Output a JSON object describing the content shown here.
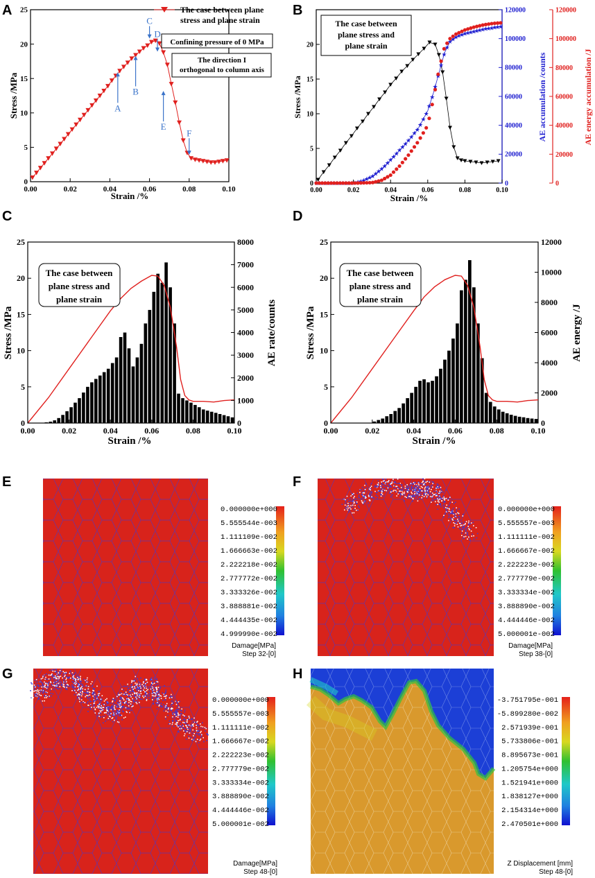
{
  "colors": {
    "stress": "#e0201e",
    "black": "#000000",
    "blue": "#1f1fd0",
    "red": "#e0201e",
    "arrow": "#3a73c9",
    "sim_red": "#d8231b",
    "sim_blue": "#2233cc"
  },
  "panel_letters": {
    "a": "A",
    "b": "B",
    "c": "C",
    "d": "D",
    "e": "E",
    "f": "F",
    "g": "G",
    "h": "H"
  },
  "chart_data": [
    {
      "id": "A",
      "type": "line",
      "xlabel": "Strain /%",
      "ylabel": "Stress /MPa",
      "xlim": [
        0,
        0.1
      ],
      "ylim": [
        0,
        25
      ],
      "xticks": [
        "0.00",
        "0.02",
        "0.04",
        "0.06",
        "0.08",
        "0.10"
      ],
      "yticks": [
        "0",
        "5",
        "10",
        "15",
        "20",
        "25"
      ],
      "legend": [
        "The case between plane",
        "stress and plane strain"
      ],
      "annotations": [
        "Confining pressure of  0 MPa",
        "The direction I",
        "orthogonal  to column axis"
      ],
      "points": [
        {
          "label": "A",
          "x": 0.044,
          "y": 16.3
        },
        {
          "label": "B",
          "x": 0.053,
          "y": 18.7
        },
        {
          "label": "C",
          "x": 0.06,
          "y": 20.4
        },
        {
          "label": "D",
          "x": 0.064,
          "y": 18.5
        },
        {
          "label": "E",
          "x": 0.067,
          "y": 13.6
        },
        {
          "label": "F",
          "x": 0.08,
          "y": 3.3
        }
      ],
      "series": [
        {
          "name": "The case between plane stress and plane strain",
          "x": [
            0.001,
            0.003,
            0.005,
            0.007,
            0.009,
            0.011,
            0.013,
            0.015,
            0.017,
            0.019,
            0.021,
            0.023,
            0.025,
            0.027,
            0.029,
            0.031,
            0.033,
            0.035,
            0.037,
            0.039,
            0.041,
            0.043,
            0.045,
            0.047,
            0.049,
            0.051,
            0.053,
            0.055,
            0.057,
            0.059,
            0.061,
            0.063,
            0.065,
            0.067,
            0.069,
            0.071,
            0.073,
            0.075,
            0.077,
            0.079,
            0.081,
            0.083,
            0.085,
            0.087,
            0.089,
            0.091,
            0.093,
            0.095,
            0.097,
            0.099
          ],
          "values": [
            0.6,
            1.3,
            2.0,
            2.7,
            3.4,
            4.1,
            4.8,
            5.5,
            6.2,
            6.9,
            7.6,
            8.3,
            9.0,
            9.7,
            10.4,
            11.1,
            11.8,
            12.5,
            13.2,
            13.9,
            14.7,
            15.4,
            16.1,
            16.7,
            17.3,
            17.9,
            18.4,
            18.9,
            19.4,
            19.8,
            20.3,
            20.5,
            20.1,
            18.8,
            17.0,
            14.2,
            11.5,
            8.6,
            6.0,
            4.2,
            3.4,
            3.2,
            3.1,
            3.0,
            2.9,
            2.8,
            2.8,
            2.9,
            3.0,
            3.1
          ]
        }
      ]
    },
    {
      "id": "B",
      "type": "line",
      "xlabel": "Strain /%",
      "ylabel": "Stress /MPa",
      "ylabel2": "AE accumulation /counts",
      "ylabel3": "AE energy accumulation /J",
      "xlim": [
        0,
        0.1
      ],
      "ylim": [
        0,
        25
      ],
      "ylim2": [
        0,
        120000
      ],
      "ylim3": [
        0,
        120000
      ],
      "xticks": [
        "0.00",
        "0.02",
        "0.04",
        "0.06",
        "0.08",
        "0.10"
      ],
      "yticks": [
        "0",
        "5",
        "10",
        "15",
        "20"
      ],
      "yticks2": [
        "0",
        "20000",
        "40000",
        "60000",
        "80000",
        "100000",
        "120000"
      ],
      "yticks3": [
        "0",
        "20000",
        "40000",
        "60000",
        "80000",
        "100000",
        "120000"
      ],
      "legend": [
        "The case between",
        "plane stress and",
        "plane strain"
      ],
      "series": [
        {
          "name": "Stress",
          "x": [
            0.001,
            0.004,
            0.007,
            0.01,
            0.013,
            0.016,
            0.019,
            0.022,
            0.025,
            0.028,
            0.031,
            0.034,
            0.037,
            0.04,
            0.043,
            0.046,
            0.049,
            0.052,
            0.055,
            0.058,
            0.061,
            0.064,
            0.066,
            0.068,
            0.07,
            0.072,
            0.074,
            0.076,
            0.078,
            0.08,
            0.083,
            0.086,
            0.089,
            0.092,
            0.095,
            0.098
          ],
          "values": [
            0.5,
            1.6,
            2.6,
            3.7,
            4.7,
            5.8,
            6.8,
            7.9,
            8.9,
            10.0,
            11.0,
            12.1,
            13.1,
            14.2,
            15.1,
            16.1,
            16.9,
            17.8,
            18.6,
            19.4,
            20.3,
            20.0,
            18.5,
            16.0,
            12.2,
            8.0,
            5.2,
            3.6,
            3.3,
            3.2,
            3.1,
            3.0,
            2.9,
            3.0,
            3.1,
            3.2
          ]
        },
        {
          "name": "AE accumulation",
          "x": [
            0.02,
            0.025,
            0.03,
            0.035,
            0.04,
            0.045,
            0.05,
            0.055,
            0.06,
            0.063,
            0.066,
            0.069,
            0.072,
            0.075,
            0.08,
            0.085,
            0.09,
            0.095,
            0.1
          ],
          "values": [
            0,
            1500,
            4500,
            9500,
            16000,
            23000,
            30000,
            38000,
            50000,
            62000,
            76000,
            90000,
            98000,
            101000,
            103500,
            105000,
            106500,
            107500,
            108500
          ]
        },
        {
          "name": "AE energy accumulation",
          "x": [
            0.02,
            0.03,
            0.035,
            0.04,
            0.045,
            0.05,
            0.055,
            0.06,
            0.063,
            0.066,
            0.069,
            0.072,
            0.075,
            0.08,
            0.085,
            0.09,
            0.095,
            0.1
          ],
          "values": [
            0,
            300,
            1800,
            5500,
            12000,
            20000,
            29000,
            40000,
            58000,
            78000,
            94000,
            100000,
            103000,
            106000,
            108000,
            109500,
            110500,
            111000
          ]
        }
      ]
    },
    {
      "id": "C",
      "type": "bar",
      "xlabel": "Strain /%",
      "ylabel": "Stress /MPa",
      "ylabel2": "AE rate/counts",
      "xlim": [
        0,
        0.1
      ],
      "ylim": [
        0,
        25
      ],
      "ylim2": [
        0,
        8000
      ],
      "xticks": [
        "0.00",
        "0.02",
        "0.04",
        "0.06",
        "0.08",
        "0.10"
      ],
      "yticks": [
        "0",
        "5",
        "10",
        "15",
        "20",
        "25"
      ],
      "yticks2": [
        "0",
        "1000",
        "2000",
        "3000",
        "4000",
        "5000",
        "6000",
        "7000",
        "8000"
      ],
      "legend": [
        "The case between",
        "plane stress and",
        "plane strain"
      ],
      "bars": {
        "x": [
          0.009,
          0.011,
          0.013,
          0.015,
          0.017,
          0.019,
          0.021,
          0.023,
          0.025,
          0.027,
          0.029,
          0.031,
          0.033,
          0.035,
          0.037,
          0.039,
          0.041,
          0.043,
          0.045,
          0.047,
          0.049,
          0.051,
          0.053,
          0.055,
          0.057,
          0.059,
          0.061,
          0.063,
          0.065,
          0.067,
          0.069,
          0.071,
          0.073,
          0.075,
          0.077,
          0.079,
          0.081,
          0.083,
          0.085,
          0.087,
          0.089,
          0.091,
          0.093,
          0.095,
          0.097,
          0.099
        ],
        "values": [
          30,
          60,
          120,
          220,
          360,
          520,
          700,
          900,
          1100,
          1350,
          1600,
          1800,
          1950,
          2100,
          2250,
          2400,
          2650,
          2900,
          3800,
          4000,
          3300,
          2500,
          2900,
          3500,
          4400,
          5000,
          5800,
          6600,
          6200,
          7100,
          6000,
          4400,
          1300,
          1100,
          1000,
          900,
          800,
          700,
          600,
          550,
          500,
          450,
          400,
          350,
          300,
          250
        ]
      },
      "stress_line": {
        "x": [
          0.0,
          0.01,
          0.02,
          0.03,
          0.04,
          0.045,
          0.05,
          0.055,
          0.06,
          0.063,
          0.066,
          0.069,
          0.072,
          0.074,
          0.076,
          0.078,
          0.08,
          0.085,
          0.09,
          0.095,
          0.1
        ],
        "values": [
          0,
          3.5,
          7.5,
          11.5,
          15.5,
          17.2,
          18.6,
          19.6,
          20.4,
          20.3,
          19.0,
          16.0,
          10.5,
          6.0,
          3.8,
          3.2,
          3.0,
          3.0,
          2.9,
          3.1,
          3.2
        ]
      }
    },
    {
      "id": "D",
      "type": "bar",
      "xlabel": "Strain /%",
      "ylabel": "Stress /MPa",
      "ylabel2": "AE energy /J",
      "xlim": [
        0,
        0.1
      ],
      "ylim": [
        0,
        25
      ],
      "ylim2": [
        0,
        12000
      ],
      "xticks": [
        "0.00",
        "0.02",
        "0.04",
        "0.06",
        "0.08",
        "0.10"
      ],
      "yticks": [
        "0",
        "5",
        "10",
        "15",
        "20",
        "25"
      ],
      "yticks2": [
        "0",
        "2000",
        "4000",
        "6000",
        "8000",
        "10000",
        "12000"
      ],
      "legend": [
        "The case between",
        "plane stress and",
        "plane strain"
      ],
      "bars": {
        "x": [
          0.021,
          0.023,
          0.025,
          0.027,
          0.029,
          0.031,
          0.033,
          0.035,
          0.037,
          0.039,
          0.041,
          0.043,
          0.045,
          0.047,
          0.049,
          0.051,
          0.053,
          0.055,
          0.057,
          0.059,
          0.061,
          0.063,
          0.065,
          0.067,
          0.069,
          0.071,
          0.073,
          0.075,
          0.077,
          0.079,
          0.081,
          0.083,
          0.085,
          0.087,
          0.089,
          0.091,
          0.093,
          0.095,
          0.097,
          0.099
        ],
        "values": [
          100,
          200,
          300,
          450,
          600,
          800,
          1000,
          1300,
          1650,
          2000,
          2400,
          2800,
          2900,
          2700,
          2800,
          3100,
          3600,
          4200,
          4800,
          5600,
          6600,
          8800,
          9500,
          10800,
          9000,
          6600,
          4300,
          2000,
          1400,
          1100,
          900,
          750,
          650,
          550,
          480,
          420,
          380,
          330,
          300,
          270
        ]
      },
      "stress_line": {
        "x": [
          0.0,
          0.01,
          0.02,
          0.03,
          0.04,
          0.045,
          0.05,
          0.055,
          0.06,
          0.063,
          0.066,
          0.069,
          0.072,
          0.074,
          0.076,
          0.078,
          0.08,
          0.085,
          0.09,
          0.095,
          0.1
        ],
        "values": [
          0,
          3.5,
          7.5,
          11.5,
          15.5,
          17.4,
          18.8,
          19.8,
          20.4,
          20.3,
          19.0,
          16.0,
          10.5,
          6.0,
          3.8,
          3.2,
          3.0,
          3.0,
          2.9,
          3.1,
          3.2
        ]
      }
    }
  ],
  "sim": {
    "E": {
      "scale": [
        "0.000000e+000",
        "5.555544e-003",
        "1.111109e-002",
        "1.666663e-002",
        "2.222218e-002",
        "2.777772e-002",
        "3.333326e-002",
        "3.888881e-002",
        "4.444435e-002",
        "4.999990e-002"
      ],
      "title": "Damage[MPa]",
      "step": "Step 32-[0]"
    },
    "F": {
      "scale": [
        "0.000000e+000",
        "5.555557e-003",
        "1.111111e-002",
        "1.666667e-002",
        "2.222223e-002",
        "2.777779e-002",
        "3.333334e-002",
        "3.888890e-002",
        "4.444446e-002",
        "5.000001e-002"
      ],
      "title": "Damage[MPa]",
      "step": "Step 38-[0]"
    },
    "G": {
      "scale": [
        "0.000000e+000",
        "5.555557e-003",
        "1.111111e-002",
        "1.666667e-002",
        "2.222223e-002",
        "2.777779e-002",
        "3.333334e-002",
        "3.888890e-002",
        "4.444446e-002",
        "5.000001e-002"
      ],
      "title": "Damage[MPa]",
      "step": "Step 48-[0]"
    },
    "H": {
      "scale": [
        "-3.751795e-001",
        "-5.899280e-002",
        "2.571939e-001",
        "5.733806e-001",
        "8.895673e-001",
        "1.205754e+000",
        "1.521941e+000",
        "1.838127e+000",
        "2.154314e+000",
        "2.470501e+000"
      ],
      "title": "Z Displacement [mm]",
      "step": "Step 48-[0]"
    }
  }
}
